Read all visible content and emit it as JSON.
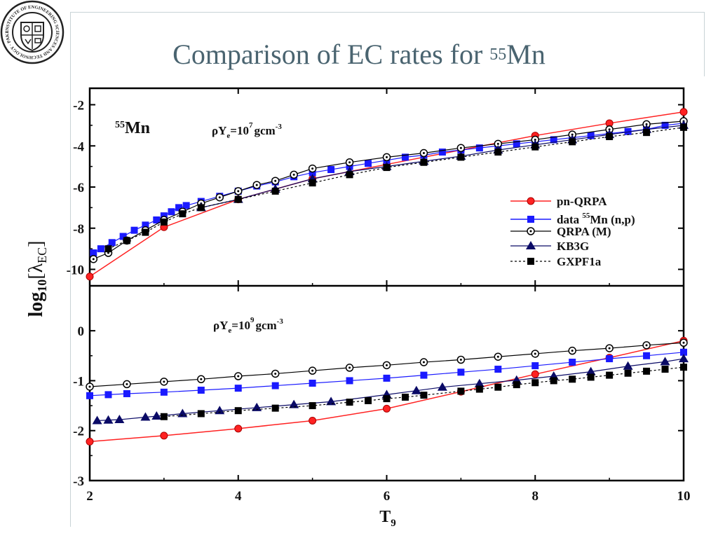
{
  "slide": {
    "title_prefix": "Comparison of EC rates for ",
    "title_mass": "55",
    "title_element": "Mn"
  },
  "logo": {
    "text": "INSTITUTE OF ENGINEERING SCIENCES AND TECHNOLOGY · PAKISTAN ·"
  },
  "colors": {
    "pn_qrpa": "#ff2222",
    "data": "#1a1aff",
    "qrpa_m": "#000000",
    "kb3g": "#0a0a66",
    "gxpf1a": "#000000",
    "title": "#4a6470"
  },
  "chart_data": {
    "type": "line",
    "xlabel": "T",
    "xlabel_sub": "9",
    "ylabel": "log",
    "ylabel_sub": "10",
    "ylabel_bracket": "[λ",
    "ylabel_inner_sub": "EC",
    "ylabel_close": "]",
    "xlim": [
      2,
      10
    ],
    "xticks": [
      2,
      4,
      6,
      8,
      10
    ],
    "legend": {
      "placement": "top-right of upper panel",
      "entries": [
        {
          "key": "pn_qrpa",
          "label": "pn-QRPA"
        },
        {
          "key": "data",
          "label": "data ",
          "sup": "55",
          "rest": "Mn (n,p)"
        },
        {
          "key": "qrpa_m",
          "label": "QRPA (M)"
        },
        {
          "key": "kb3g",
          "label": "KB3G"
        },
        {
          "key": "gxpf1a",
          "label": "GXPF1a"
        }
      ]
    },
    "panels": [
      {
        "name": "upper",
        "ylim": [
          -10.8,
          -1.2
        ],
        "yticks": [
          -10,
          -8,
          -6,
          -4,
          -2
        ],
        "nucleus_mass": "55",
        "nucleus": "Mn",
        "density_prefix": "ρY",
        "density_sub": "e",
        "density_mid": "=10",
        "density_exp": "7",
        "density_unit": "gcm",
        "density_unit_exp": "-3",
        "series": [
          {
            "key": "pn_qrpa",
            "name": "pn-QRPA",
            "marker": "circle-filled",
            "line": "solid",
            "x": [
              2,
              3,
              4,
              5,
              6,
              7,
              8,
              9,
              10
            ],
            "y": [
              -10.35,
              -7.95,
              -6.6,
              -5.6,
              -4.9,
              -4.2,
              -3.5,
              -2.9,
              -2.35
            ]
          },
          {
            "key": "data",
            "name": "data 55Mn (n,p)",
            "marker": "square",
            "line": "solid",
            "x": [
              2.05,
              2.15,
              2.3,
              2.45,
              2.6,
              2.75,
              2.9,
              3.0,
              3.1,
              3.2,
              3.3,
              3.5,
              3.75,
              4.0,
              4.25,
              4.5,
              4.75,
              5.0,
              5.25,
              5.5,
              5.75,
              6.0,
              6.25,
              6.5,
              6.75,
              7.0,
              7.25,
              7.5,
              7.75,
              8.0,
              8.25,
              8.5,
              8.75,
              9.0,
              9.25,
              9.5,
              9.75,
              10.0
            ],
            "y": [
              -9.2,
              -9.0,
              -8.7,
              -8.4,
              -8.1,
              -7.85,
              -7.6,
              -7.4,
              -7.2,
              -7.0,
              -6.9,
              -6.7,
              -6.45,
              -6.2,
              -5.95,
              -5.75,
              -5.5,
              -5.3,
              -5.15,
              -5.0,
              -4.85,
              -4.7,
              -4.55,
              -4.45,
              -4.3,
              -4.2,
              -4.1,
              -4.0,
              -3.9,
              -3.8,
              -3.7,
              -3.6,
              -3.5,
              -3.4,
              -3.3,
              -3.2,
              -3.0,
              -2.9
            ]
          },
          {
            "key": "qrpa_m",
            "name": "QRPA (M)",
            "marker": "circle-open",
            "line": "solid",
            "x": [
              2.05,
              2.25,
              2.5,
              2.75,
              3.0,
              3.25,
              3.5,
              3.75,
              4.0,
              4.25,
              4.5,
              4.75,
              5.0,
              5.5,
              6.0,
              6.5,
              7.0,
              7.5,
              8.0,
              8.5,
              9.0,
              9.5,
              10.0
            ],
            "y": [
              -9.5,
              -9.2,
              -8.6,
              -8.1,
              -7.6,
              -7.2,
              -6.8,
              -6.5,
              -6.2,
              -5.9,
              -5.7,
              -5.4,
              -5.1,
              -4.8,
              -4.55,
              -4.35,
              -4.1,
              -3.9,
              -3.7,
              -3.45,
              -3.2,
              -2.95,
              -2.8
            ]
          },
          {
            "key": "kb3g",
            "name": "KB3G",
            "marker": "triangle",
            "line": "solid",
            "x": [
              3.5,
              4.0,
              4.5,
              5.0,
              5.5,
              6.0,
              6.5,
              7.0,
              7.5,
              8.0,
              8.5,
              9.0,
              9.5,
              10.0
            ],
            "y": [
              -7.0,
              -6.6,
              -6.1,
              -5.6,
              -5.25,
              -5.0,
              -4.75,
              -4.5,
              -4.2,
              -3.95,
              -3.7,
              -3.45,
              -3.2,
              -3.0
            ]
          },
          {
            "key": "gxpf1a",
            "name": "GXPF1a",
            "marker": "square-filled",
            "line": "dotted",
            "x": [
              2.25,
              2.5,
              2.75,
              3.0,
              3.25,
              3.5,
              4.0,
              4.5,
              5.0,
              5.5,
              6.0,
              6.5,
              7.0,
              7.5,
              8.0,
              8.5,
              9.0,
              9.5,
              10.0
            ],
            "y": [
              -9.0,
              -8.6,
              -8.2,
              -7.7,
              -7.3,
              -7.0,
              -6.6,
              -6.2,
              -5.8,
              -5.4,
              -5.05,
              -4.8,
              -4.55,
              -4.3,
              -4.05,
              -3.8,
              -3.55,
              -3.35,
              -3.1
            ]
          }
        ]
      },
      {
        "name": "lower",
        "ylim": [
          -3,
          0.9
        ],
        "yticks": [
          -3,
          -2,
          -1,
          0
        ],
        "density_prefix": "ρY",
        "density_sub": "e",
        "density_mid": "=10",
        "density_exp": "9",
        "density_unit": "gcm",
        "density_unit_exp": "-3",
        "series": [
          {
            "key": "pn_qrpa",
            "name": "pn-QRPA",
            "marker": "circle-filled",
            "line": "solid",
            "x": [
              2,
              3,
              4,
              5,
              6,
              7,
              8,
              9,
              10
            ],
            "y": [
              -2.22,
              -2.1,
              -1.96,
              -1.8,
              -1.56,
              -1.22,
              -0.87,
              -0.54,
              -0.2
            ]
          },
          {
            "key": "data",
            "name": "data 55Mn (n,p)",
            "marker": "square",
            "line": "solid",
            "x": [
              2.0,
              2.25,
              2.5,
              3.0,
              3.5,
              4.0,
              4.5,
              5.0,
              5.5,
              6.0,
              6.5,
              7.0,
              7.5,
              8.0,
              8.5,
              9.0,
              9.5,
              10.0
            ],
            "y": [
              -1.3,
              -1.28,
              -1.26,
              -1.23,
              -1.19,
              -1.15,
              -1.1,
              -1.05,
              -1.0,
              -0.95,
              -0.89,
              -0.83,
              -0.77,
              -0.7,
              -0.63,
              -0.56,
              -0.5,
              -0.43
            ]
          },
          {
            "key": "qrpa_m",
            "name": "QRPA (M)",
            "marker": "circle-open",
            "line": "solid",
            "x": [
              2.0,
              2.5,
              3.0,
              3.5,
              4.0,
              4.5,
              5.0,
              5.5,
              6.0,
              6.5,
              7.0,
              7.5,
              8.0,
              8.5,
              9.0,
              9.5,
              10.0
            ],
            "y": [
              -1.12,
              -1.07,
              -1.02,
              -0.97,
              -0.91,
              -0.86,
              -0.8,
              -0.74,
              -0.69,
              -0.63,
              -0.58,
              -0.52,
              -0.46,
              -0.4,
              -0.35,
              -0.29,
              -0.24
            ]
          },
          {
            "key": "kb3g",
            "name": "KB3G",
            "marker": "triangle",
            "line": "solid",
            "x": [
              2.1,
              2.25,
              2.4,
              2.75,
              2.9,
              3.25,
              3.75,
              4.25,
              4.75,
              5.25,
              6.0,
              6.4,
              6.75,
              7.25,
              7.75,
              8.25,
              8.75,
              9.25,
              9.75,
              10.0
            ],
            "y": [
              -1.8,
              -1.79,
              -1.78,
              -1.73,
              -1.71,
              -1.66,
              -1.6,
              -1.54,
              -1.48,
              -1.42,
              -1.28,
              -1.2,
              -1.13,
              -1.06,
              -0.99,
              -0.91,
              -0.82,
              -0.71,
              -0.62,
              -0.56
            ]
          },
          {
            "key": "gxpf1a",
            "name": "GXPF1a",
            "marker": "square-filled",
            "line": "dotted",
            "x": [
              3.0,
              3.5,
              4.0,
              4.5,
              5.0,
              5.5,
              5.75,
              6.0,
              6.25,
              6.5,
              7.0,
              7.25,
              7.5,
              7.75,
              8.0,
              8.25,
              8.5,
              8.75,
              9.0,
              9.25,
              9.5,
              9.75,
              10.0
            ],
            "y": [
              -1.72,
              -1.66,
              -1.6,
              -1.55,
              -1.5,
              -1.43,
              -1.4,
              -1.36,
              -1.33,
              -1.29,
              -1.21,
              -1.17,
              -1.13,
              -1.08,
              -1.04,
              -1.0,
              -0.97,
              -0.93,
              -0.89,
              -0.85,
              -0.81,
              -0.77,
              -0.73
            ]
          }
        ]
      }
    ]
  }
}
